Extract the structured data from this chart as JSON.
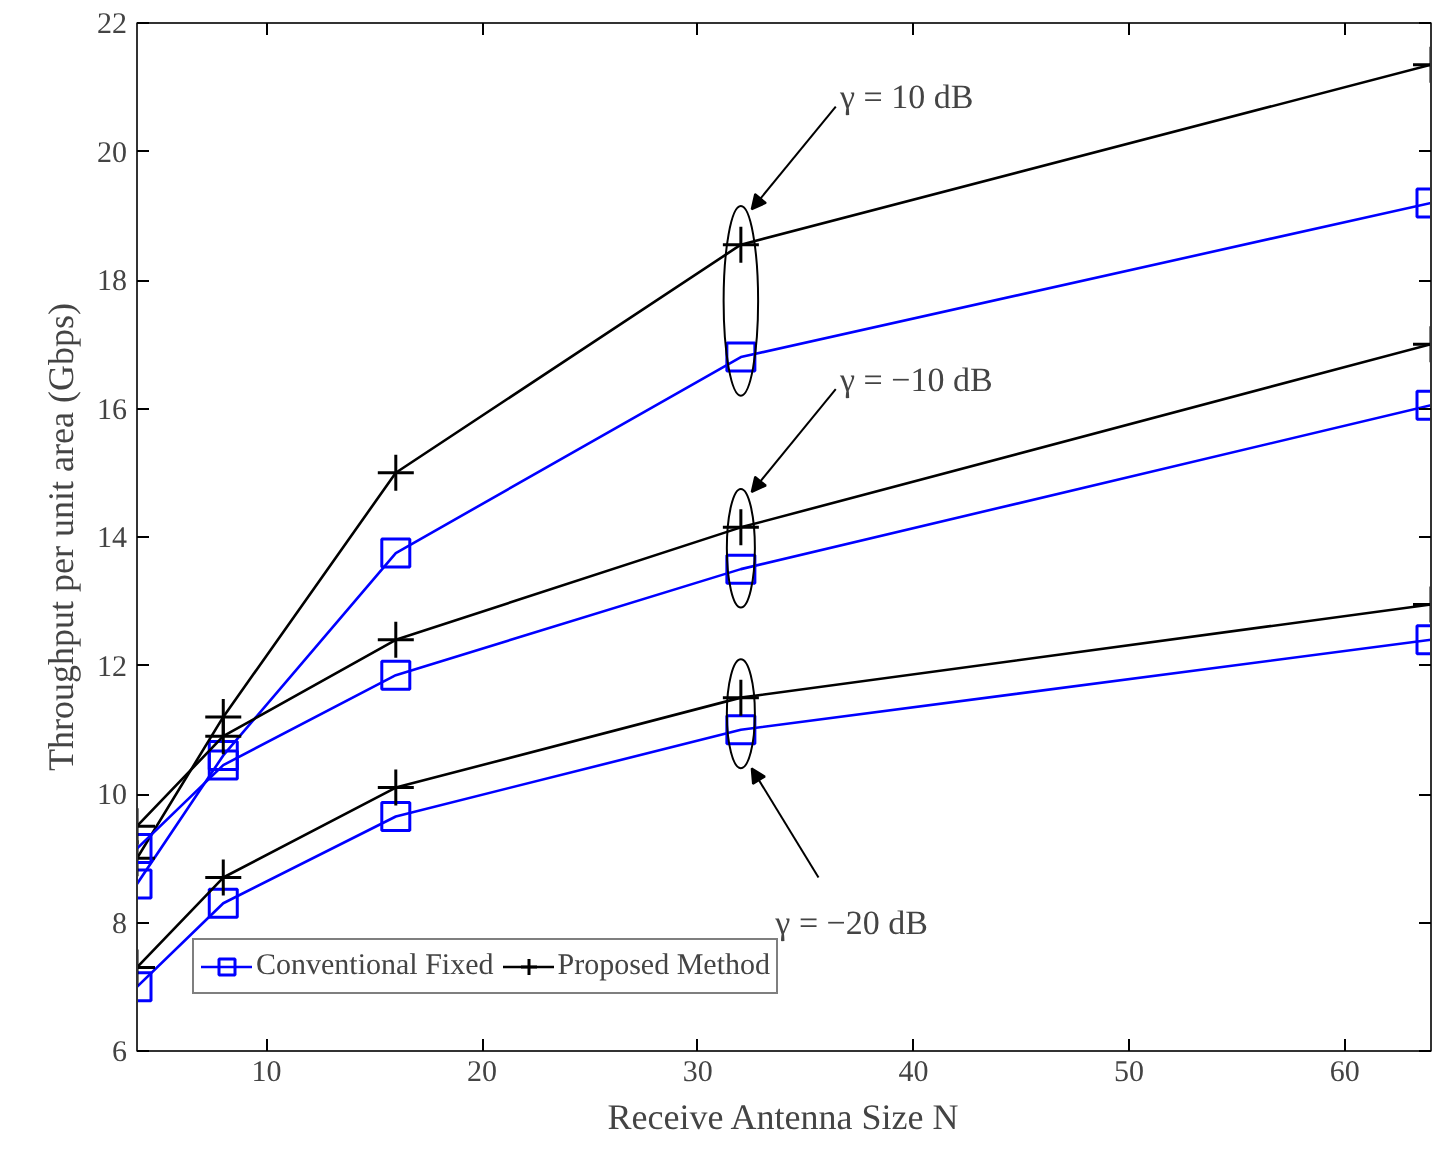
{
  "chart_data": {
    "type": "line",
    "xlabel": "Receive Antenna Size N",
    "ylabel": "Throughput per unit area (Gbps)",
    "x": [
      4,
      8,
      16,
      32,
      64
    ],
    "series": [
      {
        "name": "Conventional Fixed",
        "color": "#0000ff",
        "marker": "square",
        "values": [
          8.6,
          10.6,
          13.75,
          16.8,
          19.2
        ]
      },
      {
        "name": "Proposed Method",
        "color": "#000000",
        "marker": "cross",
        "values": [
          9.0,
          11.2,
          15.0,
          18.55,
          21.35
        ]
      },
      {
        "color": "#0000ff",
        "marker": "square",
        "values": [
          9.15,
          10.45,
          11.85,
          13.5,
          16.05
        ]
      },
      {
        "color": "#000000",
        "marker": "cross",
        "values": [
          9.5,
          10.9,
          12.4,
          14.15,
          17.0
        ]
      },
      {
        "color": "#0000ff",
        "marker": "square",
        "values": [
          7.0,
          8.3,
          9.65,
          11.0,
          12.4
        ]
      },
      {
        "color": "#000000",
        "marker": "cross",
        "values": [
          7.3,
          8.7,
          10.1,
          11.5,
          12.95
        ]
      }
    ],
    "annotations": [
      "γ = 10 dB",
      "γ = −10 dB",
      "γ = −20 dB"
    ],
    "xlim": [
      4,
      64
    ],
    "ylim": [
      6,
      22
    ],
    "xticks": [
      10,
      20,
      30,
      40,
      50,
      60
    ],
    "yticks": [
      6,
      8,
      10,
      12,
      14,
      16,
      18,
      20,
      22
    ],
    "grid": false,
    "legend": "bottom left",
    "line_style": "solid"
  }
}
